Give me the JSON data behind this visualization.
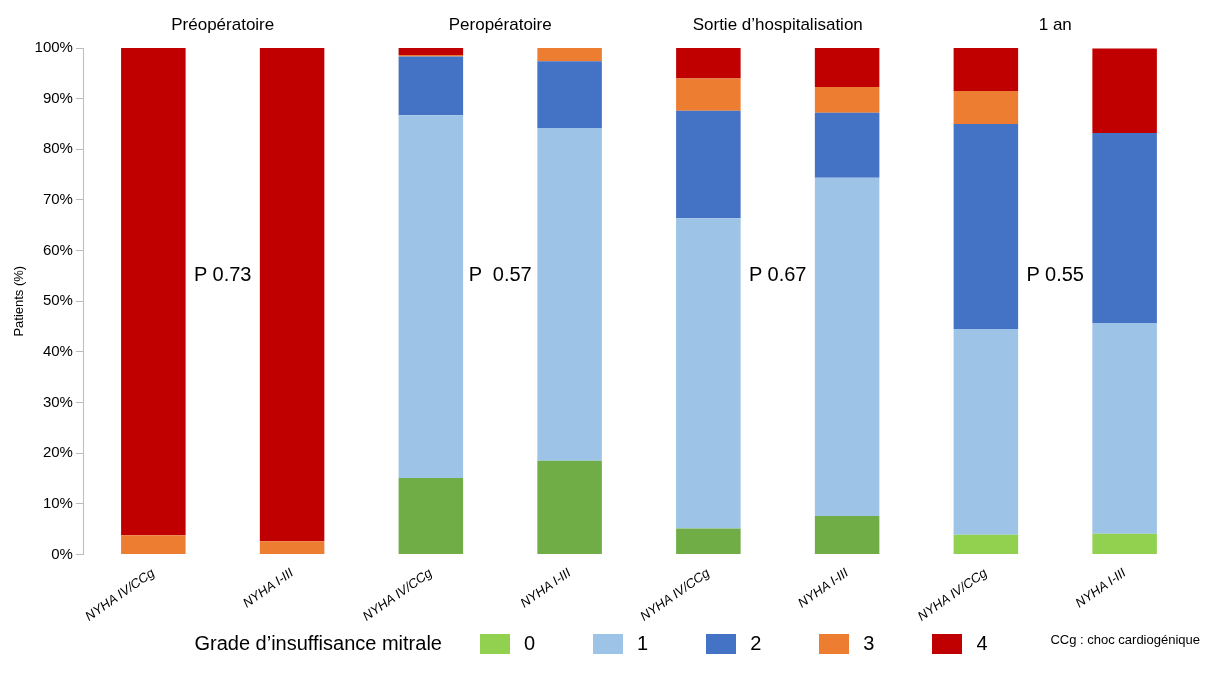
{
  "chart_data": {
    "type": "bar",
    "stacked": true,
    "categories": [
      "NYHA IV/CCg",
      "NYHA I-III",
      "NYHA IV/CCg",
      "NYHA I-III",
      "NYHA IV/CCg",
      "NYHA I-III",
      "NYHA IV/CCg",
      "NYHA I-III"
    ],
    "ylabel": "Patients (%)",
    "ylim": [
      0,
      100
    ],
    "yticks": [
      {
        "value": 0,
        "label": "0%"
      },
      {
        "value": 10,
        "label": "10%"
      },
      {
        "value": 20,
        "label": "20%"
      },
      {
        "value": 30,
        "label": "30%"
      },
      {
        "value": 40,
        "label": "40%"
      },
      {
        "value": 50,
        "label": "50%"
      },
      {
        "value": 60,
        "label": "60%"
      },
      {
        "value": 70,
        "label": "70%"
      },
      {
        "value": 80,
        "label": "80%"
      },
      {
        "value": 90,
        "label": "90%"
      },
      {
        "value": 100,
        "label": "100%"
      }
    ],
    "grid": false,
    "legend": "bottom",
    "legend_title": "Grade d’insuffisance mitrale",
    "series": [
      {
        "name": "0",
        "color": "#92d050",
        "colors": [
          "#70ad47",
          "#70ad47",
          "#70ad47",
          "#70ad47",
          "#70ad47",
          "#70ad47",
          "#92d050",
          "#92d050"
        ],
        "values": [
          0,
          0,
          15.1,
          18.5,
          5.1,
          7.6,
          3.9,
          4.1
        ]
      },
      {
        "name": "1",
        "color": "#9dc3e6",
        "values": [
          0,
          0,
          71.6,
          65.7,
          61.3,
          66.8,
          40.6,
          41.6
        ]
      },
      {
        "name": "2",
        "color": "#4472c4",
        "values": [
          0,
          0,
          11.6,
          13.2,
          21.2,
          12.8,
          40.5,
          37.5
        ]
      },
      {
        "name": "3",
        "color": "#ed7d31",
        "values": [
          3.8,
          2.6,
          0.3,
          2.6,
          6.4,
          5.1,
          6.5,
          0
        ]
      },
      {
        "name": "4",
        "color": "#c00000",
        "values": [
          96.2,
          97.4,
          1.4,
          0,
          6.0,
          7.7,
          8.5,
          16.7
        ]
      }
    ],
    "annotations": [
      "Préopératoire",
      "Peropératoire",
      "Sortie d’hospitalisation",
      "1 an",
      "P 0.73",
      "P  0.57",
      "P 0.67",
      "P 0.55",
      "CCg : choc cardiogénique"
    ]
  }
}
